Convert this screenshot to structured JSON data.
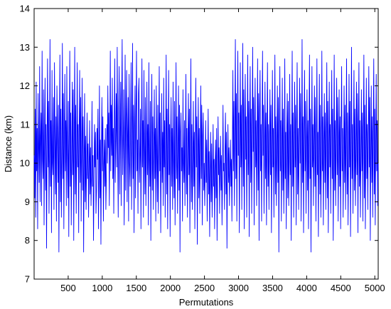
{
  "chart_data": {
    "type": "line",
    "title": "",
    "xlabel": "Permutations",
    "ylabel": "Distance (km)",
    "xlim": [
      0,
      5050
    ],
    "ylim": [
      7,
      14
    ],
    "x_ticks": [
      500,
      1000,
      1500,
      2000,
      2500,
      3000,
      3500,
      4000,
      4500,
      5000
    ],
    "y_ticks": [
      7,
      8,
      9,
      10,
      11,
      12,
      13,
      14
    ],
    "grid": false,
    "legend": "none",
    "colors": {
      "line": "#0000ff",
      "axes": "#000000",
      "background": "#ffffff"
    },
    "series": [
      {
        "x_range": [
          1,
          5050
        ],
        "y": [
          10.2,
          9.1,
          11.4,
          8.6,
          12.1,
          9.8,
          10.9,
          8.3,
          11.8,
          10.4,
          9.5,
          12.5,
          9.0,
          10.7,
          11.3,
          8.9,
          12.9,
          10.1,
          9.6,
          11.9,
          8.4,
          10.8,
          12.2,
          9.3,
          11.0,
          7.8,
          10.5,
          12.7,
          9.9,
          11.6,
          8.7,
          10.3,
          13.2,
          9.4,
          11.1,
          8.2,
          12.4,
          10.0,
          9.7,
          11.7,
          8.8,
          12.6,
          10.6,
          9.2,
          11.2,
          8.5,
          12.0,
          10.9,
          9.5,
          11.5,
          7.7,
          10.8,
          12.8,
          9.0,
          11.4,
          8.6,
          10.2,
          13.1,
          9.6,
          11.8,
          8.3,
          10.7,
          12.3,
          9.8,
          11.1,
          8.9,
          12.5,
          10.4,
          9.1,
          11.6,
          8.1,
          10.9,
          12.9,
          9.4,
          11.3,
          8.4,
          10.1,
          12.1,
          9.7,
          11.9,
          8.0,
          10.6,
          13.0,
          9.2,
          11.5,
          8.7,
          10.3,
          12.6,
          9.9,
          11.0,
          8.2,
          10.8,
          12.4,
          9.5,
          11.7,
          8.5,
          10.4,
          12.2,
          9.3,
          11.2,
          7.7,
          10.0,
          11.8,
          9.0,
          10.7,
          8.8,
          9.9,
          11.3,
          9.6,
          10.5,
          8.6,
          9.8,
          11.1,
          9.2,
          10.4,
          8.9,
          9.7,
          11.6,
          9.4,
          10.2,
          8.0,
          9.5,
          11.0,
          9.9,
          10.8,
          8.7,
          9.3,
          10.9,
          10.1,
          11.4,
          8.3,
          9.6,
          12.0,
          9.1,
          10.6,
          7.9,
          10.3,
          11.7,
          9.8,
          11.2,
          8.5,
          9.9,
          10.6,
          9.4,
          10.9,
          8.8,
          9.6,
          11.0,
          10.0,
          12.0,
          10.4,
          11.3,
          8.9,
          10.7,
          12.9,
          9.8,
          11.5,
          10.2,
          12.2,
          9.6,
          10.9,
          8.7,
          11.1,
          12.7,
          9.5,
          10.6,
          11.8,
          9.9,
          13.0,
          10.3,
          8.6,
          11.4,
          12.5,
          9.2,
          10.8,
          12.1,
          8.9,
          11.6,
          13.2,
          9.7,
          10.5,
          11.9,
          8.4,
          10.1,
          12.8,
          9.3,
          11.2,
          12.4,
          9.0,
          10.7,
          11.7,
          8.5,
          12.3,
          10.0,
          9.4,
          11.0,
          12.6,
          8.8,
          10.4,
          13.1,
          9.6,
          11.5,
          8.2,
          10.9,
          12.0,
          9.1,
          11.3,
          12.9,
          9.8,
          10.6,
          8.7,
          11.8,
          12.2,
          9.5,
          10.2,
          11.4,
          8.3,
          10.8,
          12.7,
          9.9,
          11.1,
          8.6,
          12.4,
          10.5,
          9.2,
          11.7,
          8.9,
          10.3,
          12.1,
          9.7,
          11.0,
          8.4,
          12.6,
          10.1,
          9.4,
          11.6,
          8.0,
          10.7,
          12.3,
          9.3,
          11.2,
          8.8,
          10.4,
          11.9,
          9.6,
          10.9,
          8.5,
          12.0,
          10.2,
          9.0,
          11.5,
          8.7,
          10.6,
          12.5,
          9.8,
          11.3,
          8.2,
          10.0,
          11.8,
          9.5,
          10.8,
          8.9,
          12.2,
          9.9,
          11.1,
          8.6,
          10.5,
          12.8,
          9.2,
          11.4,
          8.3,
          10.3,
          12.4,
          9.7,
          11.0,
          8.1,
          10.7,
          11.7,
          9.4,
          10.9,
          8.8,
          12.1,
          10.1,
          9.1,
          11.6,
          8.4,
          10.6,
          12.6,
          9.6,
          11.2,
          8.7,
          10.2,
          12.0,
          9.3,
          11.5,
          7.7,
          10.8,
          11.3,
          9.8,
          10.4,
          8.5,
          11.9,
          10.0,
          9.5,
          11.1,
          8.9,
          10.7,
          12.3,
          9.2,
          10.9,
          8.6,
          10.3,
          11.8,
          9.7,
          11.4,
          8.2,
          10.5,
          12.7,
          9.0,
          11.0,
          8.8,
          10.1,
          11.6,
          9.4,
          10.8,
          8.3,
          10.6,
          12.2,
          9.9,
          11.2,
          7.9,
          10.4,
          11.7,
          9.1,
          10.9,
          8.7,
          10.2,
          12.0,
          9.6,
          11.5,
          8.4,
          10.7,
          11.3,
          9.3,
          10.0,
          8.9,
          9.8,
          11.1,
          9.5,
          10.6,
          8.5,
          9.9,
          11.4,
          9.2,
          10.3,
          8.1,
          9.7,
          10.8,
          9.0,
          10.5,
          8.6,
          9.6,
          11.0,
          9.4,
          10.1,
          8.3,
          9.8,
          10.6,
          9.1,
          10.9,
          8.0,
          9.5,
          11.2,
          9.7,
          10.4,
          8.7,
          9.9,
          10.7,
          9.3,
          10.2,
          8.4,
          9.6,
          11.5,
          9.8,
          10.0,
          8.8,
          10.3,
          11.3,
          9.2,
          10.8,
          7.8,
          9.7,
          11.0,
          9.5,
          10.4,
          8.9,
          9.9,
          10.6,
          9.4,
          10.1,
          8.5,
          10.4,
          12.4,
          9.8,
          11.6,
          8.9,
          10.9,
          13.2,
          9.6,
          11.8,
          8.5,
          10.7,
          12.9,
          10.2,
          11.3,
          8.2,
          10.5,
          12.6,
          9.9,
          11.5,
          8.8,
          11.0,
          13.1,
          9.4,
          11.9,
          8.3,
          10.8,
          12.3,
          10.1,
          11.2,
          8.6,
          10.4,
          12.8,
          9.7,
          11.6,
          8.1,
          11.1,
          12.5,
          9.5,
          11.4,
          8.7,
          10.6,
          13.0,
          10.3,
          11.7,
          8.4,
          10.9,
          12.2,
          9.9,
          11.1,
          8.9,
          10.5,
          12.7,
          9.3,
          11.8,
          8.0,
          11.3,
          12.4,
          9.8,
          11.0,
          8.5,
          10.7,
          12.9,
          10.2,
          11.5,
          8.7,
          10.2,
          12.1,
          9.6,
          11.3,
          8.4,
          10.8,
          12.6,
          9.4,
          11.0,
          8.8,
          10.5,
          11.9,
          9.7,
          11.5,
          8.2,
          10.1,
          12.4,
          9.9,
          10.9,
          8.6,
          10.6,
          12.8,
          9.2,
          11.2,
          8.9,
          10.3,
          12.0,
          9.5,
          11.7,
          7.7,
          10.7,
          12.5,
          9.8,
          11.1,
          8.5,
          10.4,
          12.2,
          9.3,
          11.4,
          8.7,
          10.0,
          12.7,
          9.6,
          10.8,
          8.3,
          10.9,
          11.8,
          9.1,
          11.6,
          8.9,
          10.2,
          12.3,
          9.7,
          11.0,
          8.0,
          10.6,
          12.9,
          9.4,
          11.3,
          8.6,
          10.3,
          12.1,
          9.9,
          11.5,
          8.4,
          10.8,
          12.6,
          9.2,
          10.9,
          8.8,
          10.5,
          12.2,
          10.0,
          11.8,
          8.5,
          10.1,
          13.2,
          9.5,
          11.2,
          8.2,
          10.7,
          12.4,
          9.8,
          11.6,
          8.7,
          10.4,
          11.9,
          9.3,
          11.1,
          8.3,
          10.9,
          12.8,
          9.6,
          11.4,
          7.7,
          10.2,
          12.5,
          9.9,
          11.0,
          8.9,
          10.6,
          12.0,
          9.4,
          11.7,
          8.5,
          10.3,
          12.7,
          9.7,
          10.8,
          8.1,
          10.8,
          12.3,
          9.2,
          11.5,
          8.6,
          10.0,
          12.9,
          9.8,
          11.2,
          8.4,
          10.5,
          11.8,
          9.5,
          11.3,
          8.8,
          10.7,
          12.6,
          9.1,
          11.6,
          8.2,
          10.3,
          12.1,
          9.9,
          11.0,
          8.7,
          10.9,
          12.4,
          9.6,
          11.4,
          8.0,
          10.1,
          12.8,
          9.3,
          11.1,
          8.9,
          10.6,
          12.2,
          9.7,
          11.7,
          8.5,
          10.4,
          11.9,
          9.4,
          11.2,
          8.3,
          10.8,
          12.5,
          9.8,
          10.9,
          8.6,
          10.2,
          12.0,
          9.5,
          11.5,
          8.8,
          10.7,
          12.7,
          9.2,
          11.3,
          8.4,
          10.0,
          12.3,
          9.9,
          11.6,
          8.1,
          10.5,
          13.0,
          9.6,
          11.0,
          8.7,
          10.9,
          12.4,
          9.3,
          11.4,
          8.9,
          10.3,
          12.1,
          9.7,
          11.8,
          8.2,
          10.6,
          12.6,
          9.4,
          11.1,
          8.6,
          10.1,
          11.9,
          9.8,
          11.3,
          8.5,
          10.8,
          12.8,
          9.1,
          11.5,
          8.3,
          10.4,
          12.2,
          9.6,
          11.0,
          8.8,
          10.7,
          12.5,
          9.9,
          11.7,
          8.0,
          10.2,
          12.0,
          9.5,
          11.2,
          8.6,
          10.9,
          12.7,
          9.2,
          11.4,
          8.4,
          10.5,
          12.3,
          9.8,
          11.1,
          8.9,
          10.0
        ]
      }
    ]
  }
}
